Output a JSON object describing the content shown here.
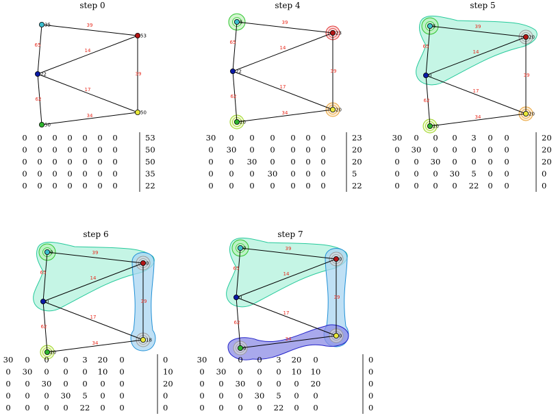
{
  "colors": {
    "edge_label": "#e8291c",
    "node_cyan": "#3bbfcf",
    "node_red": "#b31515",
    "node_blue": "#0a1aa5",
    "node_yellow": "#e9e93a",
    "node_green": "#2db52d"
  },
  "edges": [
    {
      "from": 0,
      "to": 1,
      "label": "39"
    },
    {
      "from": 0,
      "to": 2,
      "label": "65"
    },
    {
      "from": 1,
      "to": 2,
      "label": "14"
    },
    {
      "from": 1,
      "to": 3,
      "label": "39"
    },
    {
      "from": 2,
      "to": 3,
      "label": "17"
    },
    {
      "from": 2,
      "to": 4,
      "label": "62"
    },
    {
      "from": 3,
      "to": 4,
      "label": "34"
    }
  ],
  "panels": [
    {
      "title": "step 0",
      "node_labels": [
        "35",
        "53",
        "22",
        "50",
        "50"
      ],
      "rings": [],
      "blobs": [],
      "matrix": [
        [
          "0",
          "0",
          "0",
          "0",
          "0",
          "0",
          "0",
          "53"
        ],
        [
          "0",
          "0",
          "0",
          "0",
          "0",
          "0",
          "0",
          "50"
        ],
        [
          "0",
          "0",
          "0",
          "0",
          "0",
          "0",
          "0",
          "50"
        ],
        [
          "0",
          "0",
          "0",
          "0",
          "0",
          "0",
          "0",
          "35"
        ],
        [
          "0",
          "0",
          "0",
          "0",
          "0",
          "0",
          "0",
          "22"
        ]
      ]
    },
    {
      "title": "step 4",
      "node_labels": [
        "5",
        "23",
        "22",
        "20",
        "20"
      ],
      "rings": [
        {
          "node": 0,
          "color": "#2ec42e",
          "fill": "#b8f0b0"
        },
        {
          "node": 1,
          "color": "#e03030",
          "fill": "#f7c0c0"
        },
        {
          "node": 3,
          "color": "#e8a030",
          "fill": "#fbe0b8"
        },
        {
          "node": 4,
          "color": "#9ad21e",
          "fill": "#e6f6b8"
        }
      ],
      "blobs": [],
      "matrix": [
        [
          "30",
          "0",
          "0",
          "0",
          "0",
          "0",
          "0",
          "23"
        ],
        [
          "0",
          "30",
          "0",
          "0",
          "0",
          "0",
          "0",
          "20"
        ],
        [
          "0",
          "0",
          "30",
          "0",
          "0",
          "0",
          "0",
          "20"
        ],
        [
          "0",
          "0",
          "0",
          "30",
          "0",
          "0",
          "0",
          "5"
        ],
        [
          "0",
          "0",
          "0",
          "0",
          "0",
          "0",
          "0",
          "22"
        ]
      ]
    },
    {
      "title": "step 5",
      "node_labels": [
        "5",
        "20",
        "0",
        "20",
        "20"
      ],
      "rings": [
        {
          "node": 0,
          "color": "#2ec42e",
          "fill": "#b8f0b0"
        },
        {
          "node": 1,
          "color": "#999999",
          "fill": "#d8d8d8"
        },
        {
          "node": 3,
          "color": "#e8a030",
          "fill": "#fbe0b8"
        },
        {
          "node": 4,
          "color": "#9ad21e",
          "fill": "#e6f6b8"
        }
      ],
      "blobs": [
        {
          "kind": "tri",
          "stroke": "#24c99a",
          "fill": "#b2f2dc"
        }
      ],
      "matrix": [
        [
          "30",
          "0",
          "0",
          "0",
          "3",
          "0",
          "0",
          "20"
        ],
        [
          "0",
          "30",
          "0",
          "0",
          "0",
          "0",
          "0",
          "20"
        ],
        [
          "0",
          "0",
          "30",
          "0",
          "0",
          "0",
          "0",
          "20"
        ],
        [
          "0",
          "0",
          "0",
          "30",
          "5",
          "0",
          "0",
          "0"
        ],
        [
          "0",
          "0",
          "0",
          "0",
          "22",
          "0",
          "0",
          "0"
        ]
      ]
    },
    {
      "title": "step 6",
      "node_labels": [
        "0",
        "0",
        "0",
        "18",
        "20"
      ],
      "rings": [
        {
          "node": 0,
          "color": "#2ec42e",
          "fill": "#b8f0b0"
        },
        {
          "node": 1,
          "color": "#999999",
          "fill": "#d8d8d8"
        },
        {
          "node": 3,
          "color": "#999999",
          "fill": "#d8d8d8"
        },
        {
          "node": 4,
          "color": "#9ad21e",
          "fill": "#e6f6b8"
        }
      ],
      "blobs": [
        {
          "kind": "tri",
          "stroke": "#24c99a",
          "fill": "#b2f2dc"
        },
        {
          "kind": "vert",
          "stroke": "#1e8fd6",
          "fill": "#a9d6f2"
        }
      ],
      "matrix": [
        [
          "30",
          "0",
          "0",
          "0",
          "3",
          "20",
          "0",
          "0"
        ],
        [
          "0",
          "30",
          "0",
          "0",
          "0",
          "10",
          "0",
          "10"
        ],
        [
          "0",
          "0",
          "30",
          "0",
          "0",
          "0",
          "0",
          "20"
        ],
        [
          "0",
          "0",
          "0",
          "30",
          "5",
          "0",
          "0",
          "0"
        ],
        [
          "0",
          "0",
          "0",
          "0",
          "22",
          "0",
          "0",
          "0"
        ]
      ]
    },
    {
      "title": "step 7",
      "node_labels": [
        "0",
        "0",
        "0",
        "0",
        "0"
      ],
      "rings": [
        {
          "node": 0,
          "color": "#2ec42e",
          "fill": "#b8f0b0"
        },
        {
          "node": 1,
          "color": "#999999",
          "fill": "#d8d8d8"
        },
        {
          "node": 3,
          "color": "#999999",
          "fill": "#d8d8d8"
        },
        {
          "node": 4,
          "color": "#999999",
          "fill": "#d8d8d8"
        }
      ],
      "blobs": [
        {
          "kind": "tri",
          "stroke": "#24c99a",
          "fill": "#b2f2dc"
        },
        {
          "kind": "vert",
          "stroke": "#1e8fd6",
          "fill": "#a9d6f2"
        },
        {
          "kind": "horiz",
          "stroke": "#2020c8",
          "fill": "#8c8ce6"
        }
      ],
      "matrix": [
        [
          "30",
          "0",
          "0",
          "0",
          "3",
          "20",
          "0",
          "0"
        ],
        [
          "0",
          "30",
          "0",
          "0",
          "0",
          "10",
          "10",
          "0"
        ],
        [
          "0",
          "0",
          "30",
          "0",
          "0",
          "0",
          "20",
          "0"
        ],
        [
          "0",
          "0",
          "0",
          "30",
          "5",
          "0",
          "0",
          "0"
        ],
        [
          "0",
          "0",
          "0",
          "0",
          "22",
          "0",
          "0",
          "0"
        ]
      ]
    }
  ]
}
